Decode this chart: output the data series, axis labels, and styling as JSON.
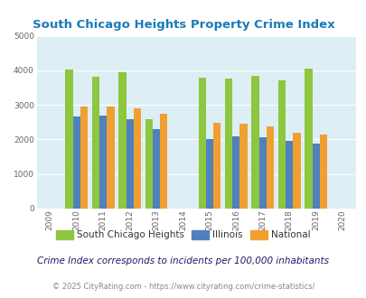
{
  "title": "South Chicago Heights Property Crime Index",
  "years": [
    2009,
    2010,
    2011,
    2012,
    2013,
    2014,
    2015,
    2016,
    2017,
    2018,
    2019,
    2020
  ],
  "data_years": [
    2010,
    2011,
    2012,
    2013,
    2015,
    2016,
    2017,
    2018,
    2019
  ],
  "south_chicago_heights": [
    4030,
    3820,
    3950,
    2590,
    3780,
    3750,
    3840,
    3700,
    4060
  ],
  "illinois": [
    2660,
    2700,
    2580,
    2300,
    2020,
    2080,
    2060,
    1970,
    1870
  ],
  "national": [
    2960,
    2940,
    2900,
    2740,
    2490,
    2460,
    2370,
    2200,
    2150
  ],
  "color_sch": "#8dc63f",
  "color_illinois": "#4f81bd",
  "color_national": "#f0a030",
  "ylim": [
    0,
    5000
  ],
  "yticks": [
    0,
    1000,
    2000,
    3000,
    4000,
    5000
  ],
  "bg_color": "#ddeef5",
  "title_color": "#1a7ab8",
  "subtitle": "Crime Index corresponds to incidents per 100,000 inhabitants",
  "footer": "© 2025 CityRating.com - https://www.cityrating.com/crime-statistics/",
  "legend_labels": [
    "South Chicago Heights",
    "Illinois",
    "National"
  ],
  "bar_width": 0.28
}
